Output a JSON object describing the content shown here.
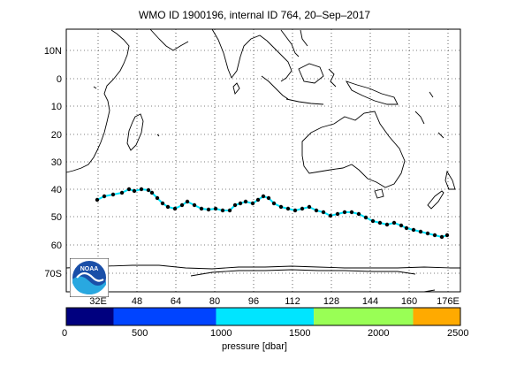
{
  "title": "WMO ID 1900196, internal ID 764, 20–Sep–2017",
  "logo_text": "NOAA",
  "map": {
    "lon_ticks": [
      "32E",
      "48",
      "64",
      "80",
      "96",
      "112",
      "128",
      "144",
      "160",
      "176E"
    ],
    "lat_ticks": [
      "10N",
      "0",
      "10",
      "20",
      "30",
      "40",
      "50",
      "60",
      "70S"
    ]
  },
  "colorbar": {
    "title": "pressure [dbar]",
    "ticks": [
      "0",
      "500",
      "1000",
      "1500",
      "2000",
      "2500"
    ],
    "colors": [
      "#00007f",
      "#0044ff",
      "#00e5ff",
      "#99ff55",
      "#ffaa00"
    ],
    "bounds": [
      0,
      300,
      950,
      1570,
      2200,
      2500
    ]
  },
  "track_colors": {
    "line": "#00e5ff",
    "markers": "#000000"
  }
}
